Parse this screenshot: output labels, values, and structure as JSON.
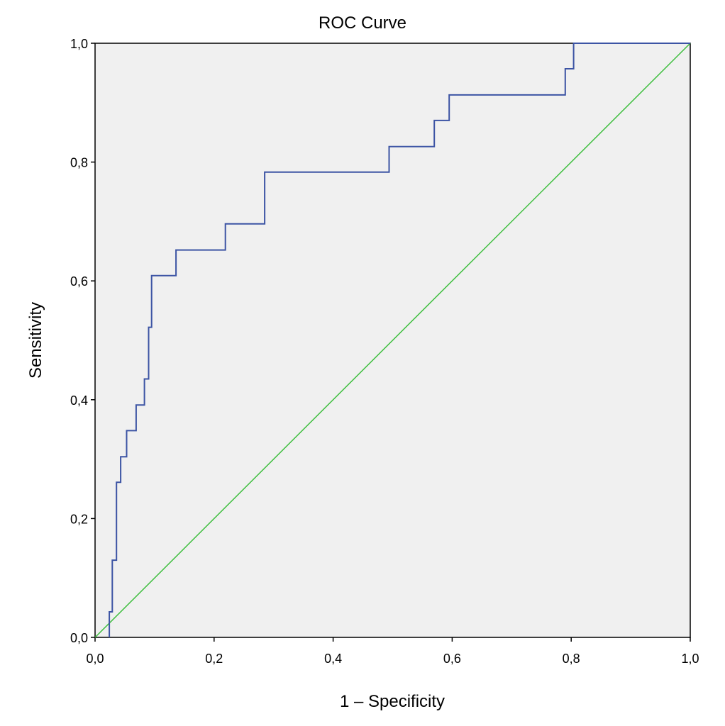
{
  "chart_data": {
    "type": "line",
    "title": "ROC Curve",
    "xlabel": "1 – Specificity",
    "ylabel": "Sensitivity",
    "xlim": [
      0.0,
      1.0
    ],
    "ylim": [
      0.0,
      1.0
    ],
    "x_ticks": [
      "0,0",
      "0,2",
      "0,4",
      "0,6",
      "0,8",
      "1,0"
    ],
    "y_ticks": [
      "0,0",
      "0,2",
      "0,4",
      "0,6",
      "0,8",
      "1,0"
    ],
    "grid": false,
    "legend": "none",
    "colors": {
      "plot_background": "#f0f0f0",
      "roc_line": "#3c54a4",
      "reference_line": "#3fbf3f"
    },
    "series": [
      {
        "kind": "step",
        "x": [
          0.024,
          0.024,
          0.029,
          0.029,
          0.036,
          0.036,
          0.043,
          0.043,
          0.053,
          0.053,
          0.069,
          0.069,
          0.083,
          0.083,
          0.09,
          0.09,
          0.095,
          0.095,
          0.136,
          0.136,
          0.219,
          0.219,
          0.285,
          0.285,
          0.494,
          0.494,
          0.57,
          0.57,
          0.595,
          0.595,
          0.79,
          0.79,
          0.804,
          0.804,
          1.0
        ],
        "y": [
          0.0,
          0.043,
          0.043,
          0.13,
          0.13,
          0.261,
          0.261,
          0.304,
          0.304,
          0.348,
          0.348,
          0.391,
          0.391,
          0.435,
          0.435,
          0.522,
          0.522,
          0.609,
          0.609,
          0.652,
          0.652,
          0.696,
          0.696,
          0.783,
          0.783,
          0.826,
          0.826,
          0.87,
          0.87,
          0.913,
          0.913,
          0.957,
          0.957,
          1.0,
          1.0
        ]
      },
      {
        "kind": "reference",
        "x": [
          0.0,
          1.0
        ],
        "y": [
          0.0,
          1.0
        ]
      }
    ]
  }
}
